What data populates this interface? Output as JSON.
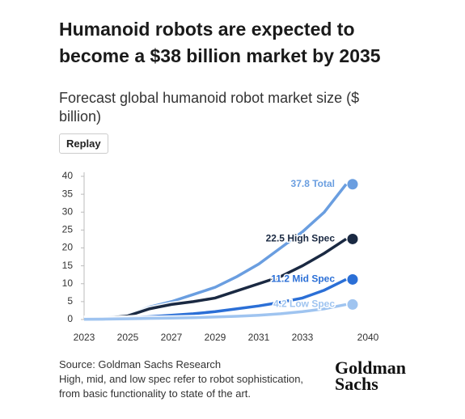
{
  "chart_data": {
    "type": "line",
    "title": "Humanoid robots are expected to become a $38 billion market by 2035",
    "subtitle": "Forecast global humanoid robot market size ($ billion)",
    "button": "Replay",
    "source": "Source: Goldman Sachs Research",
    "note": "High, mid, and low spec refer to robot sophistication, from basic functionality to state of the art.",
    "logo": [
      "Goldman",
      "Sachs"
    ],
    "categories": [
      "2023",
      null,
      "2025",
      null,
      "2027",
      null,
      "2029",
      null,
      "2031",
      null,
      "2033",
      null,
      null,
      "2040"
    ],
    "ylim": [
      0,
      40
    ],
    "yticks": [
      0,
      5,
      10,
      15,
      20,
      25,
      30,
      35,
      40
    ],
    "grid": false,
    "series": [
      {
        "name": "Total",
        "color": "#6a9ee0",
        "values": [
          0.3,
          0.6,
          1.2,
          3.5,
          5,
          7,
          9,
          12,
          15.5,
          20,
          24.5,
          30,
          37.8,
          null
        ],
        "value_labels": [
          null,
          null,
          null,
          null,
          null,
          null,
          null,
          null,
          null,
          null,
          null,
          null,
          "37.8 Total",
          null
        ]
      },
      {
        "name": "High Spec",
        "color": "#1a2942",
        "values": [
          0.2,
          0.4,
          1,
          3,
          4.2,
          5,
          6,
          8,
          10,
          12,
          15,
          18.5,
          22.5,
          null
        ],
        "value_labels": [
          null,
          null,
          null,
          null,
          null,
          null,
          null,
          null,
          null,
          null,
          null,
          null,
          "22.5 High Spec",
          null
        ]
      },
      {
        "name": "Mid Spec",
        "color": "#2b6fd6",
        "values": [
          0.1,
          0.2,
          0.4,
          0.8,
          1.2,
          1.6,
          2.2,
          3,
          3.8,
          4.8,
          6,
          8.2,
          11.2,
          null
        ],
        "value_labels": [
          null,
          null,
          null,
          null,
          null,
          null,
          null,
          null,
          null,
          null,
          null,
          null,
          "11.2 Mid Spec",
          null
        ]
      },
      {
        "name": "Low Spec",
        "color": "#9fc4f0",
        "values": [
          0.05,
          0.1,
          0.2,
          0.3,
          0.4,
          0.5,
          0.7,
          0.9,
          1.2,
          1.6,
          2.2,
          3,
          4.2,
          null
        ],
        "value_labels": [
          null,
          null,
          null,
          null,
          null,
          null,
          null,
          null,
          null,
          null,
          null,
          null,
          "4.2 Low Spec",
          null
        ]
      }
    ]
  }
}
